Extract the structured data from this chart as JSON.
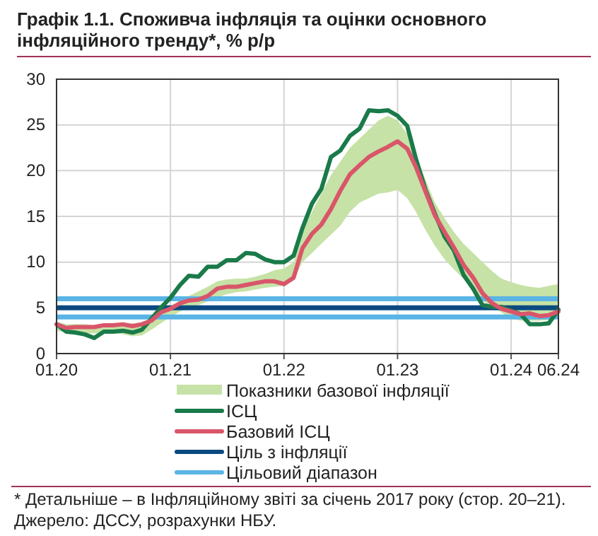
{
  "chart_data": {
    "type": "line",
    "title": "Графік 1.1. Споживча інфляція та оцінки основного інфляційного тренду*, % р/р",
    "x": [
      "2020-01",
      "2020-02",
      "2020-03",
      "2020-04",
      "2020-05",
      "2020-06",
      "2020-07",
      "2020-08",
      "2020-09",
      "2020-10",
      "2020-11",
      "2020-12",
      "2021-01",
      "2021-02",
      "2021-03",
      "2021-04",
      "2021-05",
      "2021-06",
      "2021-07",
      "2021-08",
      "2021-09",
      "2021-10",
      "2021-11",
      "2021-12",
      "2022-01",
      "2022-02",
      "2022-03",
      "2022-04",
      "2022-05",
      "2022-06",
      "2022-07",
      "2022-08",
      "2022-09",
      "2022-10",
      "2022-11",
      "2022-12",
      "2023-01",
      "2023-02",
      "2023-03",
      "2023-04",
      "2023-05",
      "2023-06",
      "2023-07",
      "2023-08",
      "2023-09",
      "2023-10",
      "2023-11",
      "2023-12",
      "2024-01",
      "2024-02",
      "2024-03",
      "2024-04",
      "2024-05",
      "2024-06"
    ],
    "series": [
      {
        "type": "area",
        "name": "Показники базової інфляції",
        "color": "#c6e2a6",
        "values": [
          null,
          null,
          null,
          null,
          null,
          null,
          null,
          null,
          null,
          null,
          null,
          null,
          null,
          null,
          null,
          null,
          null,
          null,
          null,
          null,
          null,
          null,
          null,
          null,
          null,
          null,
          null,
          null,
          null,
          null,
          null,
          null,
          null,
          null,
          null,
          null,
          null,
          null,
          null,
          null,
          null,
          null,
          null,
          null,
          null,
          null,
          null,
          null,
          null,
          null,
          null,
          null,
          null,
          null
        ],
        "lower": [
          2.5,
          2.3,
          2.2,
          2.2,
          2.2,
          2.3,
          2.3,
          2.1,
          1.9,
          2.0,
          2.6,
          3.3,
          4.0,
          4.6,
          5.0,
          5.3,
          5.7,
          6.1,
          6.5,
          6.7,
          6.8,
          7.0,
          7.2,
          7.3,
          7.4,
          8.0,
          10.0,
          11.0,
          12.0,
          13.0,
          14.0,
          15.5,
          16.5,
          17.0,
          17.5,
          17.6,
          17.9,
          17.0,
          15.5,
          13.5,
          11.8,
          10.3,
          9.2,
          8.2,
          7.0,
          5.8,
          5.0,
          4.5,
          3.8,
          3.6,
          3.6,
          3.6,
          3.7,
          3.9
        ],
        "upper": [
          3.5,
          3.2,
          3.2,
          3.2,
          3.1,
          3.2,
          3.2,
          3.3,
          3.3,
          3.4,
          3.9,
          4.8,
          5.2,
          5.8,
          6.3,
          6.8,
          7.3,
          7.9,
          8.1,
          8.2,
          8.2,
          8.4,
          8.7,
          9.1,
          9.3,
          10.0,
          13.5,
          15.5,
          17.5,
          19.5,
          21.0,
          22.5,
          23.5,
          24.5,
          25.5,
          26.0,
          25.5,
          24.0,
          21.5,
          19.0,
          16.5,
          14.8,
          13.3,
          12.0,
          11.0,
          10.0,
          9.0,
          8.2,
          7.8,
          7.5,
          7.3,
          7.2,
          7.4,
          7.6
        ]
      },
      {
        "name": "ІСЦ",
        "color": "#1a7a4a",
        "values": [
          3.2,
          2.4,
          2.3,
          2.1,
          1.7,
          2.4,
          2.4,
          2.5,
          2.3,
          2.6,
          3.8,
          5.0,
          6.1,
          7.5,
          8.5,
          8.4,
          9.5,
          9.5,
          10.2,
          10.2,
          11.0,
          10.9,
          10.3,
          10.0,
          10.0,
          10.7,
          13.7,
          16.4,
          18.0,
          21.5,
          22.2,
          23.8,
          24.6,
          26.6,
          26.5,
          26.6,
          26.0,
          24.9,
          21.3,
          17.9,
          15.3,
          12.8,
          11.3,
          8.6,
          7.1,
          5.3,
          5.1,
          5.1,
          4.7,
          4.3,
          3.2,
          3.2,
          3.3,
          4.8
        ]
      },
      {
        "name": "Базовий ІСЦ",
        "color": "#d9566a",
        "values": [
          3.2,
          2.8,
          2.9,
          2.9,
          2.9,
          3.1,
          3.1,
          3.2,
          3.0,
          3.2,
          3.6,
          4.5,
          4.9,
          5.5,
          5.8,
          5.9,
          6.3,
          7.1,
          7.3,
          7.3,
          7.5,
          7.7,
          7.9,
          7.9,
          7.6,
          8.3,
          11.5,
          13.1,
          14.1,
          15.8,
          17.8,
          19.6,
          20.6,
          21.5,
          22.1,
          22.6,
          23.2,
          22.4,
          20.4,
          17.7,
          15.1,
          13.3,
          11.6,
          9.7,
          8.3,
          6.6,
          5.5,
          4.9,
          4.6,
          4.3,
          4.4,
          4.1,
          4.2,
          4.6
        ]
      }
    ],
    "ref_lines": [
      {
        "axis": "y",
        "value": 5,
        "label": "Ціль з інфляції",
        "color": "#0b4a80"
      },
      {
        "axis": "y",
        "value": 4,
        "label": "Цільовий діапазон",
        "color": "#5ab4e5"
      },
      {
        "axis": "y",
        "value": 6,
        "color": "#5ab4e5"
      }
    ],
    "xlim": [
      "2020-01",
      "2024-06"
    ],
    "xticks": [
      {
        "value": "2020-01",
        "label": "01.20"
      },
      {
        "value": "2021-01",
        "label": "01.21"
      },
      {
        "value": "2022-01",
        "label": "01.22"
      },
      {
        "value": "2023-01",
        "label": "01.23"
      },
      {
        "value": "2024-01",
        "label": "01.24"
      },
      {
        "value": "2024-06",
        "label": "06.24"
      }
    ],
    "ylim": [
      0,
      30
    ],
    "yticks": [
      0,
      5,
      10,
      15,
      20,
      25,
      30
    ],
    "grid": true,
    "legend": "bottom",
    "marker": "none",
    "line_style": "solid",
    "annotations": [
      "* Детальніше – в Інфляційному звіті за січень 2017 року (стор. 20–21).",
      "Джерело: ДССУ, розрахунки НБУ."
    ]
  }
}
